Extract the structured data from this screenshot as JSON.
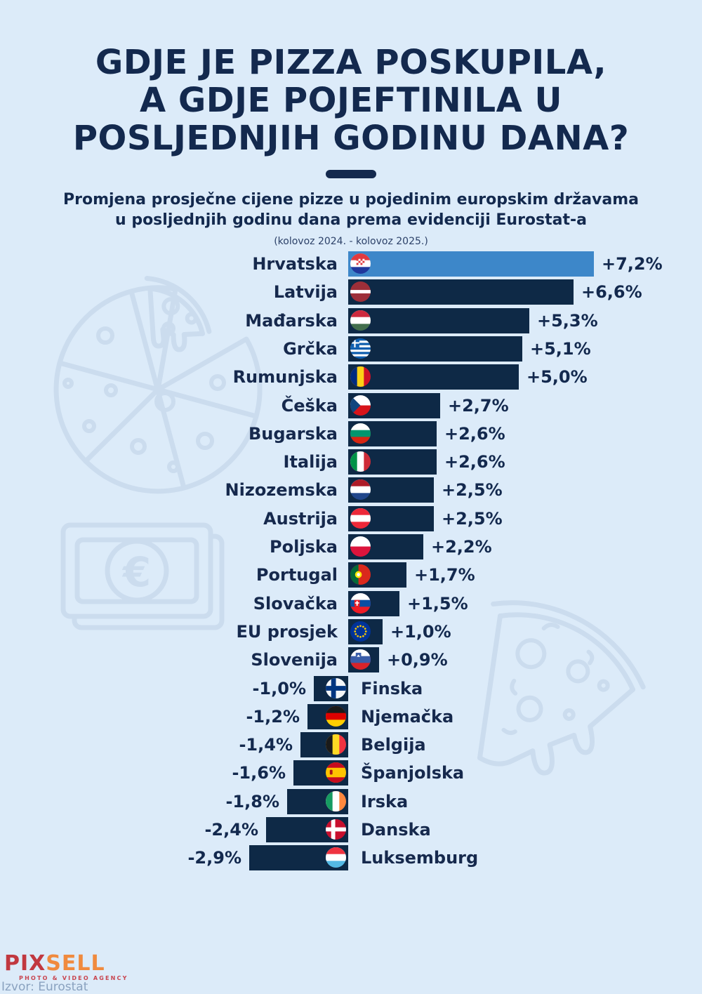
{
  "title": {
    "lines": [
      "GDJE JE PIZZA POSKUPILA,",
      "A GDJE POJEFTINILA U",
      "POSLJEDNJIH GODINU DANA?"
    ]
  },
  "subtitle": {
    "lines": [
      "Promjena prosječne cijene pizze u pojedinim europskim državama",
      "u posljednjih godinu dana prema evidenciji Eurostat-a"
    ]
  },
  "period_note": "(kolovoz 2024. - kolovoz 2025.)",
  "footer": {
    "logo_part1": "PIX",
    "logo_part2": "SELL",
    "logo_tagline": "PHOTO & VIDEO AGENCY",
    "source": "Izvor: Eurostat"
  },
  "colors": {
    "background": "#dcebf9",
    "navy": "#13294e",
    "bar": "#0e2946",
    "highlight": "#3d87c9",
    "watermark": "#cbdcee"
  },
  "chart_data": {
    "type": "bar",
    "orientation": "horizontal",
    "unit": "%",
    "title": "Promjena prosječne cijene pizze u pojedinim europskim državama u posljednjih godinu dana prema evidenciji Eurostat-a",
    "period": "(kolovoz 2024. - kolovoz 2025.)",
    "source": "Eurostat",
    "xlim": [
      -2.9,
      7.2
    ],
    "bar_color": "#0e2946",
    "highlight_color": "#3d87c9",
    "rows": [
      {
        "country": "Hrvatska",
        "value": 7.2,
        "label": "+7,2%",
        "flag": "flag-croatia",
        "highlight": true
      },
      {
        "country": "Latvija",
        "value": 6.6,
        "label": "+6,6%",
        "flag": "flag-latvia"
      },
      {
        "country": "Mađarska",
        "value": 5.3,
        "label": "+5,3%",
        "flag": "flag-hungary"
      },
      {
        "country": "Grčka",
        "value": 5.1,
        "label": "+5,1%",
        "flag": "flag-greece"
      },
      {
        "country": "Rumunjska",
        "value": 5.0,
        "label": "+5,0%",
        "flag": "flag-romania"
      },
      {
        "country": "Češka",
        "value": 2.7,
        "label": "+2,7%",
        "flag": "flag-czechia"
      },
      {
        "country": "Bugarska",
        "value": 2.6,
        "label": "+2,6%",
        "flag": "flag-bulgaria"
      },
      {
        "country": "Italija",
        "value": 2.6,
        "label": "+2,6%",
        "flag": "flag-italy"
      },
      {
        "country": "Nizozemska",
        "value": 2.5,
        "label": "+2,5%",
        "flag": "flag-netherlands"
      },
      {
        "country": "Austrija",
        "value": 2.5,
        "label": "+2,5%",
        "flag": "flag-austria"
      },
      {
        "country": "Poljska",
        "value": 2.2,
        "label": "+2,2%",
        "flag": "flag-poland"
      },
      {
        "country": "Portugal",
        "value": 1.7,
        "label": "+1,7%",
        "flag": "flag-portugal"
      },
      {
        "country": "Slovačka",
        "value": 1.5,
        "label": "+1,5%",
        "flag": "flag-slovakia"
      },
      {
        "country": "EU prosjek",
        "value": 1.0,
        "label": "+1,0%",
        "flag": "flag-eu"
      },
      {
        "country": "Slovenija",
        "value": 0.9,
        "label": "+0,9%",
        "flag": "flag-slovenia"
      },
      {
        "country": "Finska",
        "value": -1.0,
        "label": "-1,0%",
        "flag": "flag-finland"
      },
      {
        "country": "Njemačka",
        "value": -1.2,
        "label": "-1,2%",
        "flag": "flag-germany"
      },
      {
        "country": "Belgija",
        "value": -1.4,
        "label": "-1,4%",
        "flag": "flag-belgium"
      },
      {
        "country": "Španjolska",
        "value": -1.6,
        "label": "-1,6%",
        "flag": "flag-spain"
      },
      {
        "country": "Irska",
        "value": -1.8,
        "label": "-1,8%",
        "flag": "flag-ireland"
      },
      {
        "country": "Danska",
        "value": -2.4,
        "label": "-2,4%",
        "flag": "flag-denmark"
      },
      {
        "country": "Luksemburg",
        "value": -2.9,
        "label": "-2,9%",
        "flag": "flag-luxembourg"
      }
    ]
  }
}
